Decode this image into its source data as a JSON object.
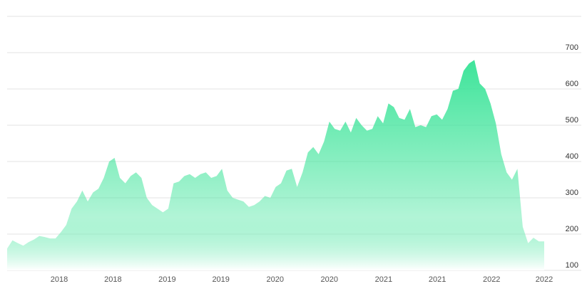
{
  "chart_data": {
    "type": "area",
    "color": "#3ee49a",
    "values": [
      160,
      183,
      175,
      168,
      178,
      185,
      195,
      192,
      188,
      188,
      205,
      225,
      270,
      290,
      320,
      290,
      315,
      325,
      355,
      400,
      410,
      355,
      340,
      360,
      370,
      355,
      300,
      280,
      270,
      260,
      270,
      340,
      345,
      360,
      365,
      355,
      365,
      370,
      355,
      360,
      380,
      320,
      300,
      295,
      290,
      275,
      280,
      290,
      305,
      300,
      330,
      340,
      375,
      380,
      330,
      370,
      425,
      440,
      420,
      455,
      510,
      490,
      485,
      510,
      480,
      520,
      500,
      485,
      490,
      525,
      505,
      560,
      550,
      520,
      515,
      545,
      495,
      500,
      495,
      525,
      530,
      515,
      545,
      595,
      600,
      650,
      670,
      680,
      615,
      600,
      560,
      505,
      420,
      370,
      350,
      380,
      220,
      175,
      190,
      180,
      180
    ],
    "xlim": [
      0,
      100
    ],
    "xticks": [
      {
        "value": 9.7,
        "label": "2018"
      },
      {
        "value": 19.7,
        "label": "2018"
      },
      {
        "value": 29.8,
        "label": "2019"
      },
      {
        "value": 39.8,
        "label": "2019"
      },
      {
        "value": 49.9,
        "label": "2020"
      },
      {
        "value": 60,
        "label": "2020"
      },
      {
        "value": 70.1,
        "label": "2021"
      },
      {
        "value": 80.1,
        "label": "2021"
      },
      {
        "value": 90.2,
        "label": "2022"
      },
      {
        "value": 100,
        "label": "2022"
      }
    ],
    "ylim": [
      100,
      800
    ],
    "yticks": [
      100,
      200,
      300,
      400,
      500,
      600,
      700
    ],
    "grid": true
  }
}
